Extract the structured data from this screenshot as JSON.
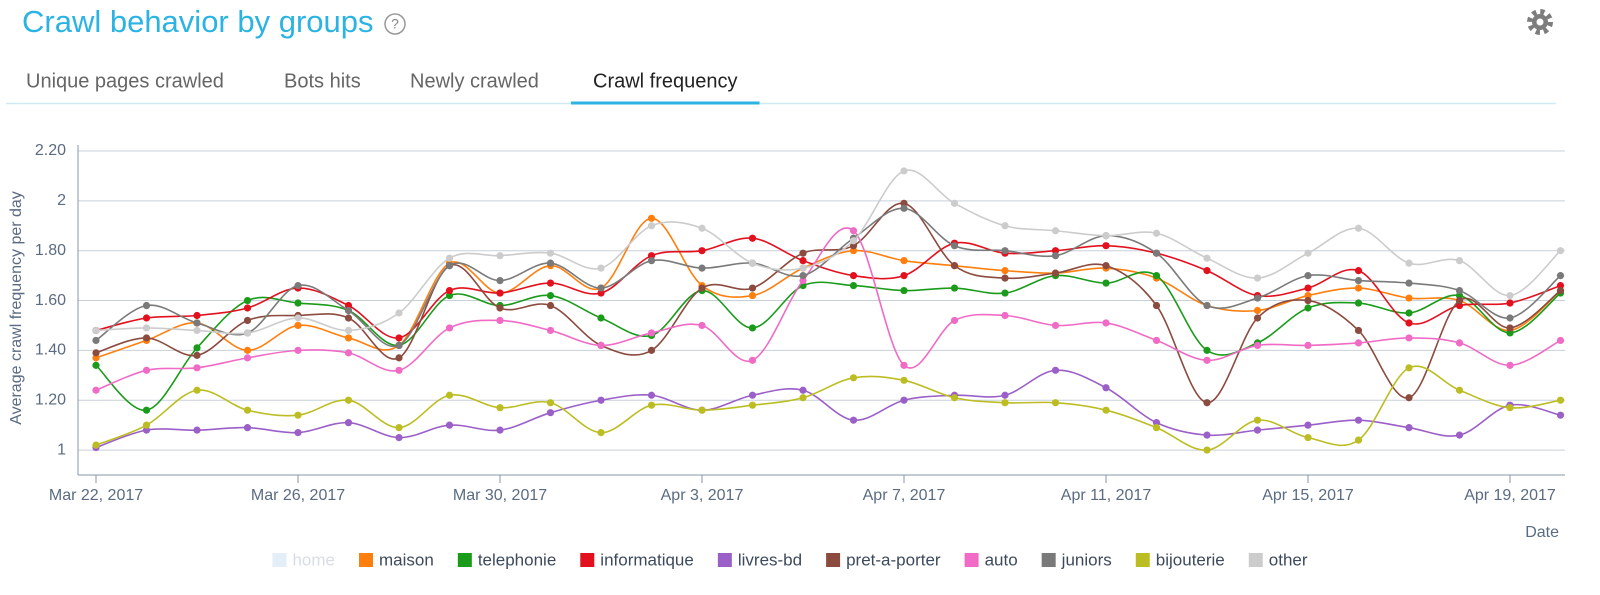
{
  "header": {
    "title": "Crawl behavior by groups",
    "help": "?",
    "tabs": [
      "Unique pages crawled",
      "Bots hits",
      "Newly crawled",
      "Crawl frequency"
    ],
    "active_tab": 3
  },
  "chart_data": {
    "type": "line",
    "y_label": "Average crawl frequency per day",
    "x_label": "Date",
    "x": [
      "2017-03-22",
      "2017-03-23",
      "2017-03-24",
      "2017-03-25",
      "2017-03-26",
      "2017-03-27",
      "2017-03-28",
      "2017-03-29",
      "2017-03-30",
      "2017-03-31",
      "2017-04-01",
      "2017-04-02",
      "2017-04-03",
      "2017-04-04",
      "2017-04-05",
      "2017-04-06",
      "2017-04-07",
      "2017-04-08",
      "2017-04-09",
      "2017-04-10",
      "2017-04-11",
      "2017-04-12",
      "2017-04-13",
      "2017-04-14",
      "2017-04-15",
      "2017-04-16",
      "2017-04-17",
      "2017-04-18",
      "2017-04-19",
      "2017-04-20"
    ],
    "xticks": [
      {
        "value": "2017-03-22",
        "label": "Mar 22, 2017"
      },
      {
        "value": "2017-03-26",
        "label": "Mar 26, 2017"
      },
      {
        "value": "2017-03-30",
        "label": "Mar 30, 2017"
      },
      {
        "value": "2017-04-03",
        "label": "Apr 3, 2017"
      },
      {
        "value": "2017-04-07",
        "label": "Apr 7, 2017"
      },
      {
        "value": "2017-04-11",
        "label": "Apr 11, 2017"
      },
      {
        "value": "2017-04-15",
        "label": "Apr 15, 2017"
      },
      {
        "value": "2017-04-19",
        "label": "Apr 19, 2017"
      }
    ],
    "ylim": [
      0.9,
      2.2
    ],
    "yticks": [
      1,
      {
        "value": 1.2,
        "label": "1.20"
      },
      {
        "value": 1.4,
        "label": "1.40"
      },
      {
        "value": 1.6,
        "label": "1.60"
      },
      {
        "value": 1.8,
        "label": "1.80"
      },
      2,
      {
        "value": 2.2,
        "label": "2.20"
      }
    ],
    "grid": true,
    "legend": "bottom",
    "series": [
      {
        "name": "home",
        "color": "#dce9f5",
        "hidden": true,
        "values": [
          null,
          null,
          null,
          null,
          null,
          null,
          null,
          null,
          null,
          null,
          null,
          null,
          null,
          null,
          null,
          null,
          null,
          null,
          null,
          null,
          null,
          null,
          null,
          null,
          null,
          null,
          null,
          null,
          null,
          null
        ]
      },
      {
        "name": "maison",
        "color": "#ff7f0e",
        "values": [
          1.37,
          1.44,
          1.51,
          1.4,
          1.5,
          1.45,
          1.42,
          1.75,
          1.63,
          1.74,
          1.65,
          1.93,
          1.66,
          1.62,
          1.73,
          1.8,
          1.76,
          1.74,
          1.72,
          1.71,
          1.73,
          1.69,
          1.58,
          1.56,
          1.62,
          1.65,
          1.61,
          1.6,
          1.48,
          1.64
        ]
      },
      {
        "name": "telephonie",
        "color": "#1a9b1a",
        "values": [
          1.34,
          1.16,
          1.41,
          1.6,
          1.59,
          1.56,
          1.42,
          1.62,
          1.58,
          1.62,
          1.53,
          1.46,
          1.64,
          1.49,
          1.66,
          1.66,
          1.64,
          1.65,
          1.63,
          1.7,
          1.67,
          1.7,
          1.4,
          1.43,
          1.57,
          1.59,
          1.55,
          1.62,
          1.47,
          1.63
        ]
      },
      {
        "name": "informatique",
        "color": "#e3101e",
        "values": [
          1.48,
          1.53,
          1.54,
          1.57,
          1.65,
          1.58,
          1.45,
          1.64,
          1.63,
          1.67,
          1.63,
          1.78,
          1.8,
          1.85,
          1.76,
          1.7,
          1.7,
          1.83,
          1.79,
          1.8,
          1.82,
          1.79,
          1.72,
          1.62,
          1.65,
          1.72,
          1.51,
          1.58,
          1.59,
          1.66
        ]
      },
      {
        "name": "livres-bd",
        "color": "#9b5fc8",
        "values": [
          1.01,
          1.08,
          1.08,
          1.09,
          1.07,
          1.11,
          1.05,
          1.1,
          1.08,
          1.15,
          1.2,
          1.22,
          1.16,
          1.22,
          1.24,
          1.12,
          1.2,
          1.22,
          1.22,
          1.32,
          1.25,
          1.11,
          1.06,
          1.08,
          1.1,
          1.12,
          1.09,
          1.06,
          1.18,
          1.14
        ]
      },
      {
        "name": "pret-a-porter",
        "color": "#8c4b3f",
        "values": [
          1.39,
          1.45,
          1.38,
          1.52,
          1.54,
          1.53,
          1.37,
          1.74,
          1.57,
          1.58,
          1.42,
          1.4,
          1.65,
          1.65,
          1.79,
          1.82,
          1.99,
          1.74,
          1.69,
          1.71,
          1.74,
          1.58,
          1.19,
          1.53,
          1.6,
          1.48,
          1.21,
          1.6,
          1.49,
          1.64
        ]
      },
      {
        "name": "auto",
        "color": "#f06bc6",
        "values": [
          1.24,
          1.32,
          1.33,
          1.37,
          1.4,
          1.39,
          1.32,
          1.49,
          1.52,
          1.48,
          1.42,
          1.47,
          1.5,
          1.36,
          1.68,
          1.88,
          1.34,
          1.52,
          1.54,
          1.5,
          1.51,
          1.44,
          1.36,
          1.42,
          1.42,
          1.43,
          1.45,
          1.43,
          1.34,
          1.44
        ]
      },
      {
        "name": "juniors",
        "color": "#7a7a7a",
        "values": [
          1.44,
          1.58,
          1.51,
          1.47,
          1.66,
          1.56,
          1.42,
          1.74,
          1.68,
          1.75,
          1.65,
          1.76,
          1.73,
          1.75,
          1.7,
          1.85,
          1.97,
          1.82,
          1.8,
          1.78,
          1.86,
          1.79,
          1.58,
          1.61,
          1.7,
          1.68,
          1.67,
          1.64,
          1.53,
          1.7
        ]
      },
      {
        "name": "bijouterie",
        "color": "#bcbd22",
        "values": [
          1.02,
          1.1,
          1.24,
          1.16,
          1.14,
          1.2,
          1.09,
          1.22,
          1.17,
          1.19,
          1.07,
          1.18,
          1.16,
          1.18,
          1.21,
          1.29,
          1.28,
          1.21,
          1.19,
          1.19,
          1.16,
          1.09,
          1.0,
          1.12,
          1.05,
          1.04,
          1.33,
          1.24,
          1.17,
          1.2
        ]
      },
      {
        "name": "other",
        "color": "#cccccc",
        "values": [
          1.48,
          1.49,
          1.48,
          1.47,
          1.53,
          1.48,
          1.55,
          1.77,
          1.78,
          1.79,
          1.73,
          1.9,
          1.89,
          1.75,
          1.73,
          1.84,
          2.12,
          1.99,
          1.9,
          1.88,
          1.86,
          1.87,
          1.77,
          1.69,
          1.79,
          1.89,
          1.75,
          1.76,
          1.62,
          1.8
        ]
      }
    ]
  }
}
